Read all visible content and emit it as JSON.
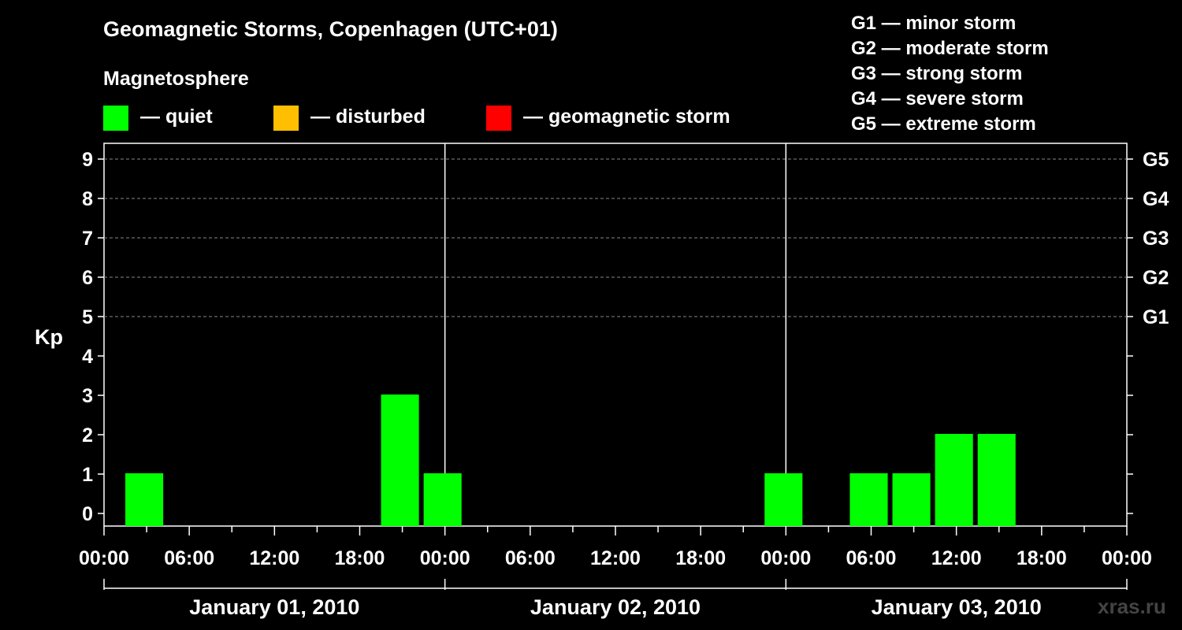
{
  "title": "Geomagnetic Storms, Copenhagen (UTC+01)",
  "legend": {
    "title": "Magnetosphere",
    "items": [
      {
        "label": "— quiet",
        "color": "#00ff00"
      },
      {
        "label": "— disturbed",
        "color": "#ffbf00"
      },
      {
        "label": "— geomagnetic storm",
        "color": "#ff0000"
      }
    ]
  },
  "storm_scale": [
    "G1 — minor storm",
    "G2 — moderate storm",
    "G3 — strong storm",
    "G4 — severe storm",
    "G5 — extreme storm"
  ],
  "watermark": "xras.ru",
  "chart_data": {
    "type": "bar",
    "ylabel": "Kp",
    "ylim": [
      0,
      9
    ],
    "y_ticks": [
      "0",
      "1",
      "2",
      "3",
      "4",
      "5",
      "6",
      "7",
      "8",
      "9"
    ],
    "right_axis": [
      {
        "kp": 5,
        "label": "G1"
      },
      {
        "kp": 6,
        "label": "G2"
      },
      {
        "kp": 7,
        "label": "G3"
      },
      {
        "kp": 8,
        "label": "G4"
      },
      {
        "kp": 9,
        "label": "G5"
      }
    ],
    "x_range_hours": [
      0,
      72
    ],
    "x_tick_labels": [
      "00:00",
      "06:00",
      "12:00",
      "18:00",
      "00:00",
      "06:00",
      "12:00",
      "18:00",
      "00:00",
      "06:00",
      "12:00",
      "18:00",
      "00:00"
    ],
    "days": [
      "January 01, 2010",
      "January 02, 2010",
      "January 03, 2010"
    ],
    "grid": "dashed horizontal at Kp 5–9",
    "bars": [
      {
        "start_hour": 1.5,
        "kp": 1,
        "color": "#00ff00"
      },
      {
        "start_hour": 19.5,
        "kp": 3,
        "color": "#00ff00"
      },
      {
        "start_hour": 22.5,
        "kp": 1,
        "color": "#00ff00"
      },
      {
        "start_hour": 46.5,
        "kp": 1,
        "color": "#00ff00"
      },
      {
        "start_hour": 52.5,
        "kp": 1,
        "color": "#00ff00"
      },
      {
        "start_hour": 55.5,
        "kp": 1,
        "color": "#00ff00"
      },
      {
        "start_hour": 58.5,
        "kp": 2,
        "color": "#00ff00"
      },
      {
        "start_hour": 61.5,
        "kp": 2,
        "color": "#00ff00"
      }
    ]
  }
}
